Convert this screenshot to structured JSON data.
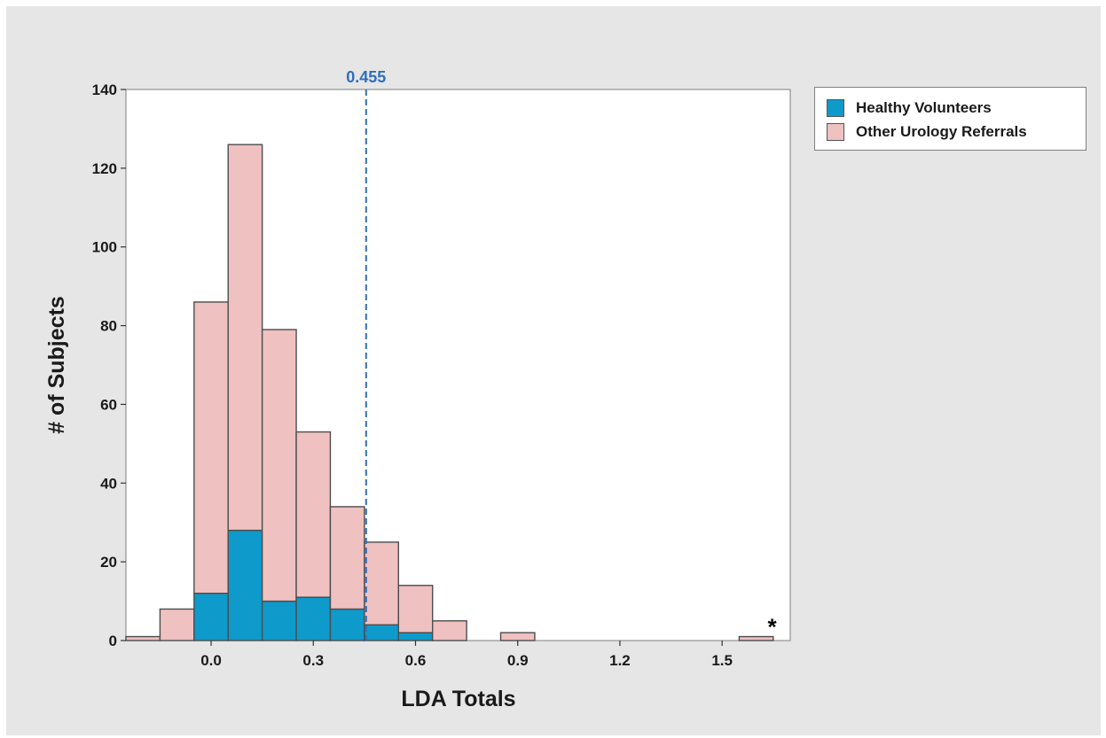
{
  "colors": {
    "background": "#e6e6e6",
    "plot_area": "#ffffff",
    "healthy_volunteers": "#0e9acb",
    "other_urology_referrals": "#efc1c1",
    "bar_outline": "#4d4d4d",
    "reference_line": "#2f6fbe"
  },
  "legend": {
    "items": [
      {
        "label": "Healthy Volunteers",
        "color": "#0e9acb"
      },
      {
        "label": "Other Urology Referrals",
        "color": "#efc1c1"
      }
    ]
  },
  "chart_data": {
    "type": "bar",
    "subtype": "stacked histogram",
    "xlabel": "LDA Totals",
    "ylabel": "# of Subjects",
    "xlim": [
      -0.25,
      1.7
    ],
    "ylim": [
      0,
      140
    ],
    "xticks": [
      0.0,
      0.3,
      0.6,
      0.9,
      1.2,
      1.5
    ],
    "xtick_labels": [
      "0.0",
      "0.3",
      "0.6",
      "0.9",
      "1.2",
      "1.5"
    ],
    "yticks": [
      0,
      20,
      40,
      60,
      80,
      100,
      120,
      140
    ],
    "ytick_labels": [
      "0",
      "20",
      "40",
      "60",
      "80",
      "100",
      "120",
      "140"
    ],
    "bin_width": 0.1,
    "bin_centers": [
      -0.2,
      -0.1,
      0.0,
      0.1,
      0.2,
      0.3,
      0.4,
      0.5,
      0.6,
      0.7,
      0.9,
      1.6
    ],
    "series": [
      {
        "name": "Healthy Volunteers",
        "values": [
          0,
          0,
          12,
          28,
          10,
          11,
          8,
          4,
          2,
          0,
          0,
          0
        ]
      },
      {
        "name": "Other Urology Referrals",
        "values": [
          1,
          8,
          74,
          98,
          69,
          42,
          26,
          21,
          12,
          5,
          2,
          1
        ]
      }
    ],
    "totals": [
      1,
      8,
      86,
      126,
      79,
      53,
      34,
      25,
      14,
      5,
      2,
      1
    ],
    "reference_line": {
      "x": 0.455,
      "label": "0.455"
    },
    "annotations": [
      {
        "text": "*",
        "x": 1.6
      }
    ],
    "grid": false,
    "legend_position": "outside-right"
  }
}
